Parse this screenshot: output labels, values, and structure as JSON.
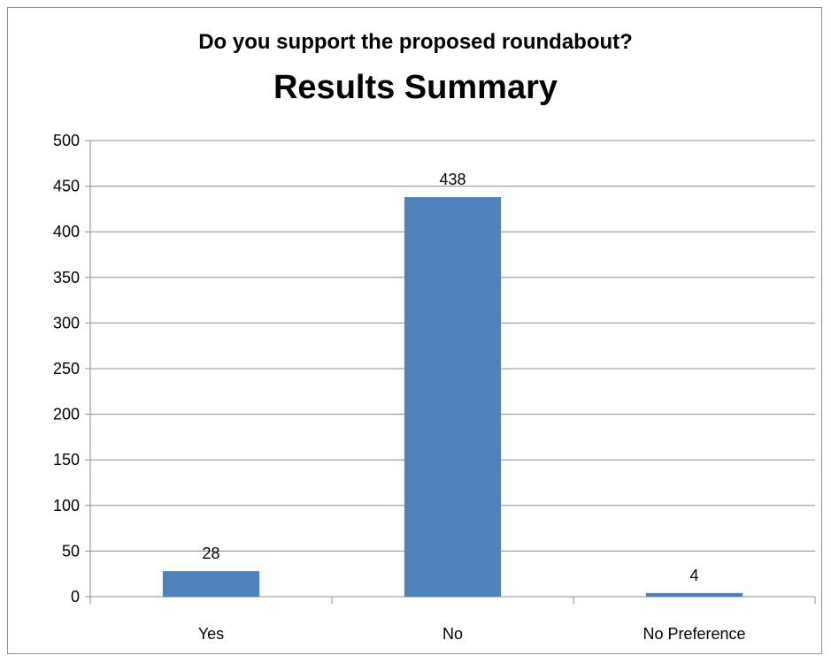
{
  "chart_data": {
    "type": "bar",
    "title": "Do you support the proposed roundabout?",
    "subtitle": "Results Summary",
    "categories": [
      "Yes",
      "No",
      "No Preference"
    ],
    "values": [
      28,
      438,
      4
    ],
    "data_labels": [
      "28",
      "438",
      "4"
    ],
    "ylim": [
      0,
      500
    ],
    "yticks": [
      0,
      50,
      100,
      150,
      200,
      250,
      300,
      350,
      400,
      450,
      500
    ],
    "grid": true,
    "legend": "none",
    "bar_color": "#4f81bd"
  }
}
